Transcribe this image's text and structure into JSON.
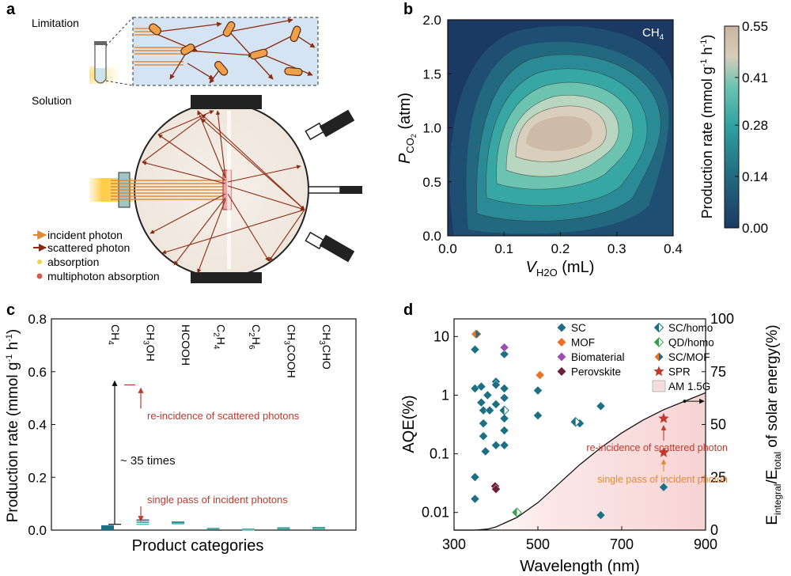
{
  "panels": {
    "a": {
      "letter": "a",
      "limitation_label": "Limitation",
      "solution_label": "Solution",
      "legend": [
        "incident photon",
        "scattered photon",
        "absorption",
        "multiphoton absorption"
      ]
    },
    "b": {
      "letter": "b",
      "series_label": "CH",
      "series_sub": "4",
      "ylabel_main": "P",
      "ylabel_sub": "CO",
      "ylabel_sub2": "2",
      "ylabel_unit": " (atm)",
      "xlabel_main": "V",
      "xlabel_sub": "H2O",
      "xlabel_unit": " (mL)",
      "colorbar_label": "Production rate (mmol g",
      "colorbar_label_end": " h",
      "colorbar_label_close": ")",
      "colorbar_ticks": [
        "0.55",
        "0.41",
        "0.28",
        "0.14",
        "0.00"
      ],
      "colors": [
        "#1b3a63",
        "#2a8a96",
        "#3fb6a8",
        "#e8dac6",
        "#c8b5a1"
      ]
    },
    "c": {
      "letter": "c",
      "ylabel": "Production rate (mmol g",
      "ylabel_h": " h",
      "ylabel_close": ")",
      "xlabel": "Product categories",
      "annotations": {
        "reincidence": "re-incidence of scattered photons",
        "single": "single pass of incident photons",
        "times": "~ 35 times"
      },
      "accent": "#c0392b"
    },
    "d": {
      "letter": "d",
      "ylabel": "AQE(%)",
      "xlabel": "Wavelength (nm)",
      "y2label_a": "E",
      "y2label_sub1": "integral",
      "y2label_b": "/E",
      "y2label_sub2": "total",
      "y2label_c": " of solar energy(%)",
      "annotations": {
        "reincidence": "re-incidence of scattered photon",
        "single": "single pass of incident photon"
      },
      "legend": [
        {
          "label": "SC",
          "color": "#1d6f84",
          "marker": "diamond"
        },
        {
          "label": "MOF",
          "color": "#e8722a",
          "marker": "diamond"
        },
        {
          "label": "Biomaterial",
          "color": "#9b4fb5",
          "marker": "diamond"
        },
        {
          "label": "Perovskite",
          "color": "#6e1f36",
          "marker": "diamond"
        },
        {
          "label": "SC/homo",
          "color": "#1d6f84",
          "marker": "half-diamond"
        },
        {
          "label": "QD/homo",
          "color": "#3a9d52",
          "marker": "half-diamond"
        },
        {
          "label": "SC/MOF",
          "color": "#1d6f84",
          "marker": "split-diamond"
        },
        {
          "label": "SPR",
          "color": "#c0392b",
          "marker": "star"
        },
        {
          "label": "AM 1.5G",
          "color": "#f5dcdc",
          "marker": "box"
        }
      ]
    }
  },
  "chart_data": [
    {
      "panel": "b",
      "type": "heatmap",
      "title": "CH4",
      "xlabel": "V_H2O (mL)",
      "ylabel": "P_CO2 (atm)",
      "xlim": [
        0,
        0.4
      ],
      "ylim": [
        0,
        2.0
      ],
      "x_ticks": [
        "0.0",
        "0.1",
        "0.2",
        "0.3",
        "0.4"
      ],
      "y_ticks": [
        "0.0",
        "0.5",
        "1.0",
        "1.5",
        "2.0"
      ],
      "value_range": [
        0.0,
        0.55
      ],
      "peak": {
        "x": 0.18,
        "y": 1.05,
        "value": 0.55
      }
    },
    {
      "panel": "c",
      "type": "bar",
      "xlabel": "Product categories",
      "ylabel": "Production rate (mmol g-1 h-1)",
      "ylim": [
        0,
        0.8
      ],
      "y_ticks": [
        "0.0",
        "0.2",
        "0.4",
        "0.6",
        "0.8"
      ],
      "categories": [
        "CH4",
        "CH3OH",
        "HCOOH",
        "C2H4",
        "C2H6",
        "CH3COOH",
        "CH3CHO"
      ],
      "series": [
        {
          "values": [
            0.016,
            0.038,
            0.03,
            0.006,
            0.003,
            0.008,
            0.009
          ]
        },
        {
          "values": [
            0.014,
            0.03,
            0.027,
            0.005,
            0.002,
            0.006,
            0.007
          ]
        },
        {
          "values": [
            0.012,
            0.022,
            0.024,
            0.004,
            0.001,
            0.004,
            0.005
          ]
        }
      ],
      "annotation_levels": {
        "reincidence": 0.55,
        "single": 0.016
      }
    },
    {
      "panel": "d",
      "type": "scatter",
      "xlabel": "Wavelength (nm)",
      "ylabel": "AQE(%)",
      "y2label": "E_integral/E_total of solar energy(%)",
      "xlim": [
        300,
        900
      ],
      "x_ticks": [
        "300",
        "500",
        "700",
        "900"
      ],
      "y_log": true,
      "ylim": [
        0.005,
        20
      ],
      "y_ticks": [
        "0.01",
        "0.1",
        "1",
        "10"
      ],
      "y2lim": [
        0,
        100
      ],
      "y2_ticks": [
        "0",
        "25",
        "50",
        "75",
        "100"
      ],
      "points": [
        {
          "x": 350,
          "y": 6,
          "type": "SC"
        },
        {
          "x": 350,
          "y": 1.3,
          "type": "SC"
        },
        {
          "x": 350,
          "y": 0.04,
          "type": "SC"
        },
        {
          "x": 350,
          "y": 0.017,
          "type": "SC"
        },
        {
          "x": 365,
          "y": 1.4,
          "type": "SC"
        },
        {
          "x": 365,
          "y": 0.75,
          "type": "SC"
        },
        {
          "x": 370,
          "y": 0.55,
          "type": "SC"
        },
        {
          "x": 370,
          "y": 0.33,
          "type": "SC"
        },
        {
          "x": 370,
          "y": 0.2,
          "type": "SC"
        },
        {
          "x": 375,
          "y": 0.11,
          "type": "SC"
        },
        {
          "x": 380,
          "y": 1.0,
          "type": "SC"
        },
        {
          "x": 385,
          "y": 0.55,
          "type": "SC"
        },
        {
          "x": 400,
          "y": 1.7,
          "type": "SC"
        },
        {
          "x": 400,
          "y": 1.5,
          "type": "SC"
        },
        {
          "x": 400,
          "y": 0.7,
          "type": "SC"
        },
        {
          "x": 400,
          "y": 0.14,
          "type": "SC"
        },
        {
          "x": 420,
          "y": 5,
          "type": "SC"
        },
        {
          "x": 420,
          "y": 1.3,
          "type": "SC"
        },
        {
          "x": 420,
          "y": 0.9,
          "type": "SC"
        },
        {
          "x": 420,
          "y": 0.4,
          "type": "SC"
        },
        {
          "x": 420,
          "y": 0.25,
          "type": "SC"
        },
        {
          "x": 420,
          "y": 0.14,
          "type": "SC"
        },
        {
          "x": 500,
          "y": 1.2,
          "type": "SC"
        },
        {
          "x": 500,
          "y": 0.45,
          "type": "SC"
        },
        {
          "x": 600,
          "y": 0.33,
          "type": "SC"
        },
        {
          "x": 650,
          "y": 0.65,
          "type": "SC"
        },
        {
          "x": 650,
          "y": 0.009,
          "type": "SC"
        },
        {
          "x": 800,
          "y": 0.027,
          "type": "SC"
        },
        {
          "x": 355,
          "y": 11,
          "type": "MOF"
        },
        {
          "x": 505,
          "y": 2.2,
          "type": "MOF"
        },
        {
          "x": 420,
          "y": 6.5,
          "type": "Biomaterial"
        },
        {
          "x": 398,
          "y": 0.028,
          "type": "Perovskite"
        },
        {
          "x": 400,
          "y": 0.025,
          "type": "Perovskite"
        },
        {
          "x": 420,
          "y": 0.55,
          "type": "SC/homo"
        },
        {
          "x": 590,
          "y": 0.35,
          "type": "SC/homo"
        },
        {
          "x": 450,
          "y": 0.01,
          "type": "QD/homo"
        },
        {
          "x": 352,
          "y": 11,
          "type": "SC/MOF"
        },
        {
          "x": 800,
          "y": 0.4,
          "type": "SPR"
        },
        {
          "x": 800,
          "y": 0.105,
          "type": "SPR"
        }
      ],
      "solar_curve_x": [
        300,
        350,
        380,
        400,
        450,
        500,
        550,
        600,
        650,
        700,
        750,
        800,
        850,
        900
      ],
      "solar_curve_y2": [
        0,
        0,
        0.5,
        1.5,
        6,
        13,
        22,
        31,
        39,
        46,
        52,
        57,
        61,
        65
      ]
    }
  ]
}
